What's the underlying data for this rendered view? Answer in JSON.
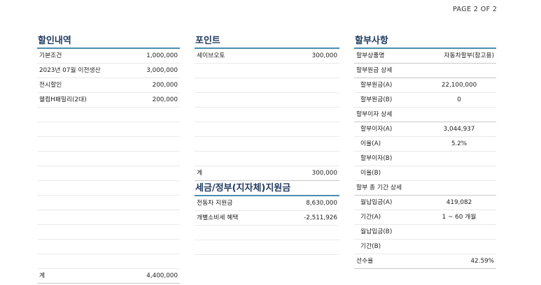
{
  "page": {
    "label": "PAGE  2 OF 2"
  },
  "discount": {
    "title": "할인내역",
    "rows": [
      {
        "label": "기본조건",
        "value": "1,000,000"
      },
      {
        "label": "2023년 07월 이전생산",
        "value": "3,000,000"
      },
      {
        "label": "전시할인",
        "value": "200,000"
      },
      {
        "label": "웰컴H패밀리(2대)",
        "value": "200,000"
      },
      {
        "label": "",
        "value": ""
      },
      {
        "label": "",
        "value": ""
      },
      {
        "label": "",
        "value": ""
      },
      {
        "label": "",
        "value": ""
      },
      {
        "label": "",
        "value": ""
      },
      {
        "label": "",
        "value": ""
      },
      {
        "label": "",
        "value": ""
      },
      {
        "label": "",
        "value": ""
      },
      {
        "label": "",
        "value": ""
      },
      {
        "label": "",
        "value": ""
      },
      {
        "label": "",
        "value": ""
      }
    ],
    "total_label": "계",
    "total_value": "4,400,000"
  },
  "points": {
    "title": "포인트",
    "rows": [
      {
        "label": "세이브오토",
        "value": "300,000"
      },
      {
        "label": "",
        "value": ""
      },
      {
        "label": "",
        "value": ""
      },
      {
        "label": "",
        "value": ""
      },
      {
        "label": "",
        "value": ""
      },
      {
        "label": "",
        "value": ""
      },
      {
        "label": "",
        "value": ""
      },
      {
        "label": "",
        "value": ""
      }
    ],
    "total_label": "계",
    "total_value": "300,000"
  },
  "subsidy": {
    "title": "세금/정부(지자체)지원금",
    "rows": [
      {
        "label": "전동차 지원금",
        "value": "8,630,000"
      },
      {
        "label": "개별소비세 혜택",
        "value": "-2,511,926"
      },
      {
        "label": "",
        "value": ""
      },
      {
        "label": "",
        "value": ""
      }
    ]
  },
  "installment": {
    "title": "할부사항",
    "rows": [
      {
        "label": "할부상품명",
        "value": "자동차할부(참고용)",
        "type": "main"
      },
      {
        "label": "할부원금 상세",
        "value": "",
        "type": "header"
      },
      {
        "label": "할부원금(A)",
        "value": "22,100,000",
        "type": "sub"
      },
      {
        "label": "할부원금(B)",
        "value": "0",
        "type": "sub"
      },
      {
        "label": "할부이자 상세",
        "value": "",
        "type": "header"
      },
      {
        "label": "할부이자(A)",
        "value": "3,044,937",
        "type": "sub"
      },
      {
        "label": "이율(A)",
        "value": "5.2%",
        "type": "sub"
      },
      {
        "label": "할부이자(B)",
        "value": "",
        "type": "sub"
      },
      {
        "label": "이율(B)",
        "value": "",
        "type": "sub"
      },
      {
        "label": "할부 총 기간 상세",
        "value": "",
        "type": "header"
      },
      {
        "label": "월납입금(A)",
        "value": "419,082",
        "type": "sub"
      },
      {
        "label": "기간(A)",
        "value": "1 ~ 60 개월",
        "type": "sub"
      },
      {
        "label": "월납입금(B)",
        "value": "",
        "type": "sub"
      },
      {
        "label": "기간(B)",
        "value": "",
        "type": "sub"
      },
      {
        "label": "선수율",
        "value": "42.59%",
        "type": "main"
      }
    ]
  },
  "colors": {
    "title_text": "#1f3a5f",
    "accent_line": "#4a8fb0"
  }
}
